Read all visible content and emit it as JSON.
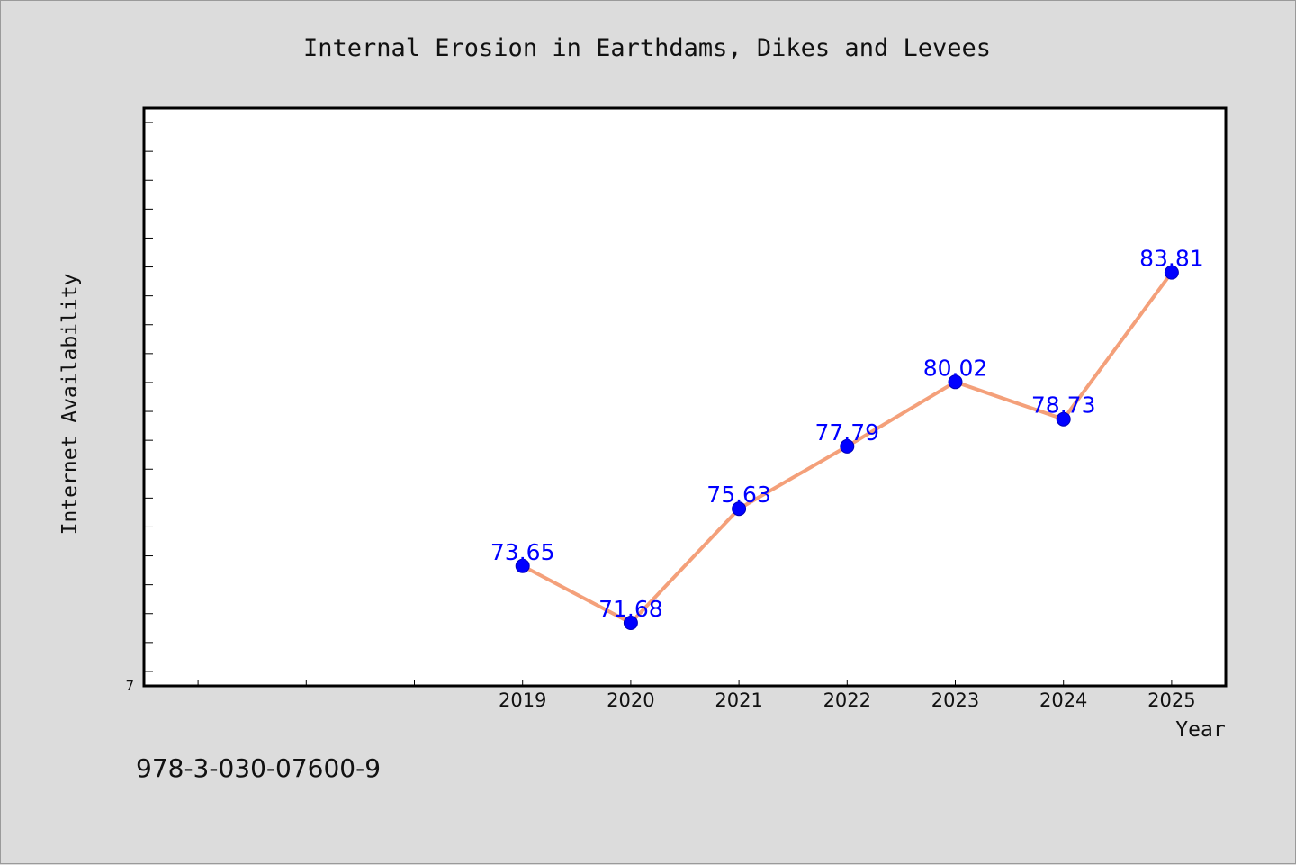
{
  "footer": {
    "text": "978-3-030-07600-9"
  },
  "colors": {
    "page_background": "#dcdcdc",
    "plot_background": "#ffffff",
    "line": "#f4a07a",
    "marker": "#0000ff",
    "data_label": "#0000ff",
    "axes": "#000000"
  },
  "chart_data": {
    "type": "line",
    "title": "Internal Erosion in Earthdams, Dikes and Levees",
    "xlabel": "Year",
    "ylabel": "Internet Availability",
    "x": [
      2019,
      2020,
      2021,
      2022,
      2023,
      2024,
      2025
    ],
    "values": [
      73.65,
      71.68,
      75.63,
      77.79,
      80.02,
      78.73,
      83.81
    ],
    "data_labels": [
      "73.65",
      "71.68",
      "75.63",
      "77.79",
      "80.02",
      "78.73",
      "83.81"
    ],
    "x_tick_labels": [
      "2019",
      "2020",
      "2021",
      "2022",
      "2023",
      "2024",
      "2025"
    ],
    "y_tick_labels_visible": [
      "7"
    ],
    "xlim": [
      2015.5,
      2025.5
    ],
    "ylim": [
      69.5,
      89.5
    ],
    "y_minor_tick_step": 1,
    "x_minor_ticks": [
      2016,
      2017,
      2018
    ],
    "grid": false,
    "legend": "none",
    "markers": true
  }
}
